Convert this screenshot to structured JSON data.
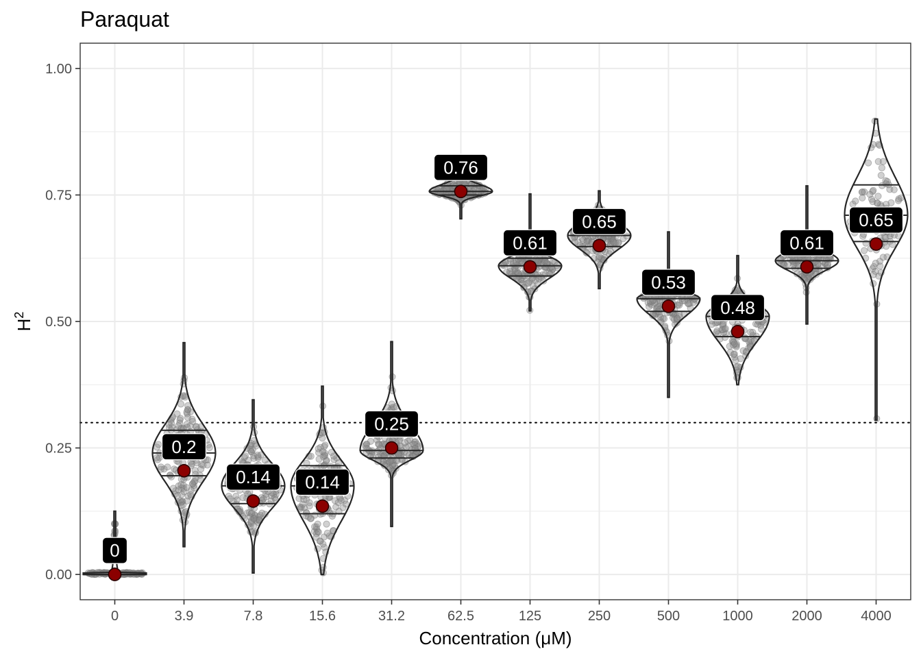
{
  "chart_data": {
    "type": "violin",
    "title": "Paraquat",
    "xlabel": "Concentration (μM)",
    "ylabel": "H",
    "ylabel_superscript": "2",
    "ylim": [
      -0.05,
      1.05
    ],
    "yticks": [
      "0.00",
      "0.25",
      "0.50",
      "0.75",
      "1.00"
    ],
    "categories": [
      "0",
      "3.9",
      "7.8",
      "15.6",
      "31.2",
      "62.5",
      "125",
      "250",
      "500",
      "1000",
      "2000",
      "4000"
    ],
    "point_estimates": [
      0.0,
      0.205,
      0.145,
      0.135,
      0.25,
      0.757,
      0.608,
      0.65,
      0.53,
      0.48,
      0.608,
      0.653
    ],
    "point_labels": [
      "0",
      "0.2",
      "0.14",
      "0.14",
      "0.25",
      "0.76",
      "0.61",
      "0.65",
      "0.53",
      "0.48",
      "0.61",
      "0.65"
    ],
    "ranges": [
      [
        0.0,
        0.125
      ],
      [
        0.055,
        0.458
      ],
      [
        0.003,
        0.345
      ],
      [
        0.0,
        0.372
      ],
      [
        0.095,
        0.46
      ],
      [
        0.703,
        0.782
      ],
      [
        0.521,
        0.752
      ],
      [
        0.565,
        0.758
      ],
      [
        0.35,
        0.677
      ],
      [
        0.375,
        0.63
      ],
      [
        0.495,
        0.768
      ],
      [
        0.305,
        0.9
      ]
    ],
    "quantiles": [
      [
        0.0,
        0.0,
        0.0
      ],
      [
        0.195,
        0.24,
        0.285
      ],
      [
        0.14,
        0.175,
        0.21
      ],
      [
        0.12,
        0.175,
        0.215
      ],
      [
        0.23,
        0.245,
        0.285
      ],
      [
        0.75,
        0.757,
        0.768
      ],
      [
        0.59,
        0.61,
        0.625
      ],
      [
        0.648,
        0.67,
        0.69
      ],
      [
        0.52,
        0.545,
        0.555
      ],
      [
        0.47,
        0.51,
        0.53
      ],
      [
        0.605,
        0.62,
        0.635
      ],
      [
        0.658,
        0.71,
        0.77
      ]
    ],
    "reference_line": 0.3,
    "colors": {
      "point": "#8b0000",
      "label_bg": "#000000",
      "label_text": "#ffffff",
      "jitter": "#8c8c8c",
      "grid": "#ebebeb",
      "outline": "#262626"
    },
    "grid": true,
    "legend": "none"
  }
}
